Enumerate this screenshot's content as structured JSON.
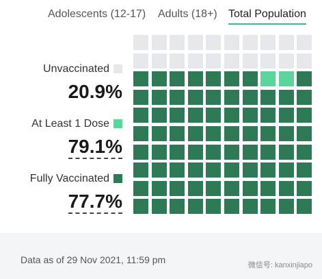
{
  "tabs": [
    "Adolescents (12-17)",
    "Adults (18+)",
    "Total Population"
  ],
  "active_tab": "Total Population",
  "legend": [
    {
      "label": "Unvaccinated",
      "value": "20.9%"
    },
    {
      "label": "At Least 1 Dose",
      "value": "79.1%"
    },
    {
      "label": "Fully Vaccinated",
      "value": "77.7%"
    }
  ],
  "footnote": "Data as of 29 Nov 2021, 11:59 pm",
  "watermark": "微信号: kanxinjiapo"
}
